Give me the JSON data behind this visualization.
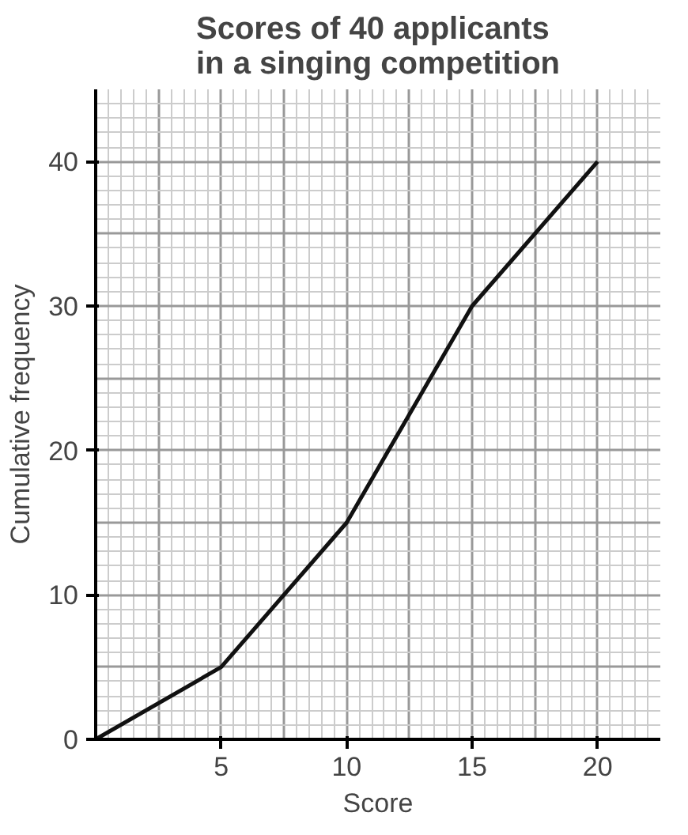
{
  "chart_data": {
    "type": "line",
    "title": "Scores of 40 applicants\nin a singing competition",
    "xlabel": "Score",
    "ylabel": "Cumulative frequency",
    "x": [
      0,
      5,
      10,
      15,
      20
    ],
    "series": [
      {
        "color": "#111111",
        "values": [
          0,
          5,
          15,
          30,
          40
        ]
      }
    ],
    "xlim": [
      0,
      22.5
    ],
    "ylim": [
      0,
      45
    ],
    "xticks": [
      5,
      10,
      15,
      20
    ],
    "yticks": [
      0,
      10,
      20,
      30,
      40
    ],
    "grid": true,
    "marker": "none",
    "line_style": "solid"
  }
}
